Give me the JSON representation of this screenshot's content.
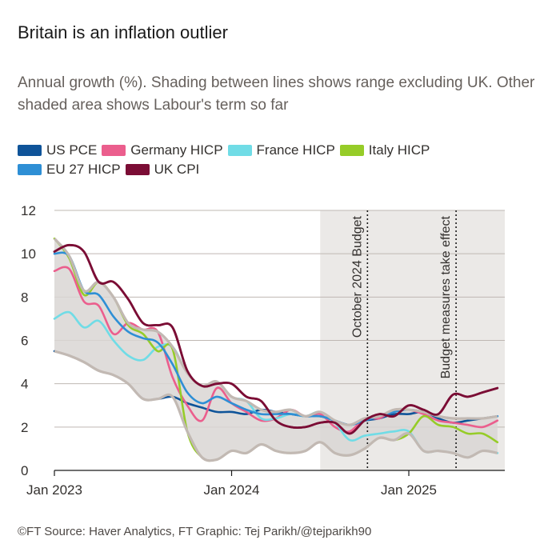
{
  "title": "Britain is an inflation outlier",
  "subtitle": "Annual growth (%). Shading between lines shows range excluding UK. Other shaded area shows Labour's term so far",
  "footer": "©FT Source: Haver Analytics, FT Graphic: Tej Parikh/@tejparikh90",
  "chart_data": {
    "type": "line",
    "title": "Britain is an inflation outlier",
    "ylabel": "Annual growth (%)",
    "xlabel": "",
    "ylim": [
      0,
      12
    ],
    "xlim": [
      0,
      30.5
    ],
    "y_ticks": [
      0,
      2,
      4,
      6,
      8,
      10,
      12
    ],
    "x_ticks": [
      {
        "label": "Jan 2023",
        "month": 0
      },
      {
        "label": "Jan 2024",
        "month": 12
      },
      {
        "label": "Jan 2025",
        "month": 24
      }
    ],
    "x_axis_note": "x values are months since Jan 2023",
    "grid": true,
    "legend_position": "top-left",
    "shaded_period": {
      "label": "Labour's term so far",
      "start": 18,
      "end": 30.5,
      "color": "#ebe9e7"
    },
    "annotations": [
      {
        "label": "October 2024 Budget",
        "x": 21.2
      },
      {
        "label": "Budget measures take effect",
        "x": 27.2
      }
    ],
    "range_band": {
      "label": "Range excluding UK",
      "fill": "#d9d6d3",
      "edge": "#c2b9b3"
    },
    "series": [
      {
        "name": "US PCE",
        "color": "#0f5499",
        "x": [
          0,
          1,
          2,
          3,
          4,
          5,
          6,
          7,
          8,
          9,
          10,
          11,
          12,
          13,
          14,
          15,
          16,
          17,
          18,
          19,
          20,
          21,
          22,
          23,
          24,
          25,
          26,
          27,
          28,
          29,
          30
        ],
        "y": [
          5.5,
          5.3,
          5.0,
          4.6,
          4.4,
          4.0,
          3.3,
          3.3,
          3.4,
          3.1,
          2.9,
          2.7,
          2.7,
          2.6,
          2.8,
          2.7,
          2.6,
          2.5,
          2.5,
          2.3,
          2.1,
          2.3,
          2.4,
          2.6,
          2.6,
          2.7,
          2.4,
          2.2,
          2.3,
          2.4,
          2.5
        ]
      },
      {
        "name": "Germany HICP",
        "color": "#eb5e8d",
        "x": [
          0,
          1,
          2,
          3,
          4,
          5,
          6,
          7,
          8,
          9,
          10,
          11,
          12,
          13,
          14,
          15,
          16,
          17,
          18,
          19,
          20,
          21,
          22,
          23,
          24,
          25,
          26,
          27,
          28,
          29,
          30
        ],
        "y": [
          9.2,
          9.3,
          7.8,
          7.6,
          6.3,
          6.8,
          6.5,
          6.4,
          4.3,
          3.0,
          2.3,
          3.8,
          3.1,
          2.7,
          2.3,
          2.4,
          2.8,
          2.5,
          2.6,
          2.0,
          1.8,
          2.4,
          2.4,
          2.8,
          2.8,
          2.6,
          2.3,
          2.2,
          2.1,
          2.0,
          2.3
        ]
      },
      {
        "name": "France HICP",
        "color": "#70dce6",
        "x": [
          0,
          1,
          2,
          3,
          4,
          5,
          6,
          7,
          8,
          9,
          10,
          11,
          12,
          13,
          14,
          15,
          16,
          17,
          18,
          19,
          20,
          21,
          22,
          23,
          24,
          25,
          26,
          27,
          28,
          29,
          30
        ],
        "y": [
          7.0,
          7.3,
          6.6,
          6.9,
          6.0,
          5.3,
          5.1,
          5.7,
          5.7,
          4.5,
          3.9,
          4.1,
          3.4,
          3.2,
          2.4,
          2.4,
          2.6,
          2.5,
          2.7,
          2.2,
          1.4,
          1.6,
          1.7,
          1.8,
          1.8,
          0.9,
          0.9,
          0.8,
          0.6,
          0.9,
          0.8
        ]
      },
      {
        "name": "Italy HICP",
        "color": "#96cc28",
        "x": [
          0,
          1,
          2,
          3,
          4,
          5,
          6,
          7,
          8,
          9,
          10,
          11,
          12,
          13,
          14,
          15,
          16,
          17,
          18,
          19,
          20,
          21,
          22,
          23,
          24,
          25,
          26,
          27,
          28,
          29,
          30
        ],
        "y": [
          10.7,
          9.8,
          8.1,
          8.7,
          8.0,
          6.7,
          6.3,
          5.5,
          5.6,
          1.8,
          0.6,
          0.5,
          0.9,
          0.8,
          1.2,
          0.9,
          0.8,
          0.9,
          1.3,
          0.8,
          0.7,
          1.0,
          1.5,
          1.4,
          1.7,
          2.5,
          2.1,
          2.0,
          1.7,
          1.7,
          1.3
        ]
      },
      {
        "name": "EU 27 HICP",
        "color": "#2e8fd5",
        "x": [
          0,
          1,
          2,
          3,
          4,
          5,
          6,
          7,
          8,
          9,
          10,
          11,
          12,
          13,
          14,
          15,
          16,
          17,
          18,
          19,
          20,
          21,
          22,
          23,
          24,
          25,
          26,
          27,
          28,
          29,
          30
        ],
        "y": [
          10.0,
          9.9,
          8.3,
          8.1,
          7.1,
          6.4,
          6.1,
          5.9,
          4.9,
          3.6,
          3.1,
          3.4,
          3.1,
          2.8,
          2.6,
          2.6,
          2.6,
          2.5,
          2.5,
          2.3,
          2.1,
          2.3,
          2.5,
          2.7,
          2.8,
          2.7,
          2.5,
          2.4,
          2.4,
          2.4,
          2.5
        ]
      },
      {
        "name": "UK CPI",
        "color": "#7b0d35",
        "x": [
          0,
          1,
          2,
          3,
          4,
          5,
          6,
          7,
          8,
          9,
          10,
          11,
          12,
          13,
          14,
          15,
          16,
          17,
          18,
          19,
          20,
          21,
          22,
          23,
          24,
          25,
          26,
          27,
          28,
          29,
          30
        ],
        "y": [
          10.1,
          10.4,
          10.1,
          8.7,
          8.7,
          7.9,
          6.8,
          6.7,
          6.6,
          4.6,
          3.9,
          4.0,
          4.0,
          3.4,
          3.2,
          2.3,
          2.0,
          2.0,
          2.2,
          2.2,
          1.7,
          2.3,
          2.6,
          2.5,
          3.0,
          2.8,
          2.6,
          3.5,
          3.4,
          3.6,
          3.8
        ]
      }
    ]
  }
}
